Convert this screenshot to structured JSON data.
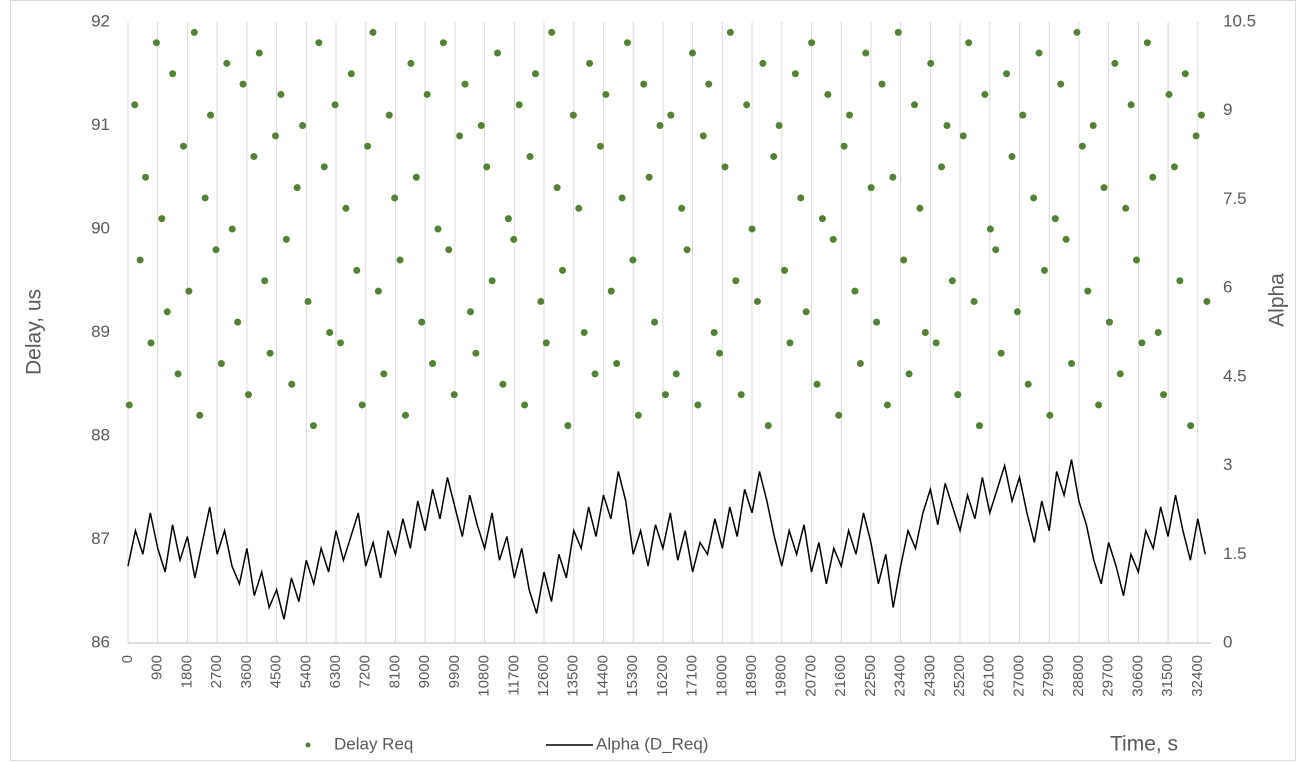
{
  "chart_data": {
    "type": "combo",
    "x_label": "Time, s",
    "y_label": "Delay, us",
    "y2_label": "Alpha",
    "xlim": [
      0,
      32800
    ],
    "xticks": [
      0,
      900,
      1800,
      2700,
      3600,
      4500,
      5400,
      6300,
      7200,
      8100,
      9000,
      9900,
      10800,
      11700,
      12600,
      13500,
      14400,
      15300,
      16200,
      17100,
      18000,
      18900,
      19800,
      20700,
      21600,
      22500,
      23400,
      24300,
      25200,
      26100,
      27000,
      27900,
      28800,
      29700,
      30600,
      31500,
      32400
    ],
    "ylim": [
      86,
      92
    ],
    "yticks": [
      86,
      87,
      88,
      89,
      90,
      91,
      92
    ],
    "y2lim": [
      0,
      10.5
    ],
    "y2ticks": [
      0,
      1.5,
      3,
      4.5,
      6,
      7.5,
      9,
      10.5
    ],
    "grid": true,
    "legend": "bottom",
    "series": [
      {
        "name": "Delay Req",
        "type": "scatter",
        "color": "#548235",
        "x": [
          40,
          204,
          368,
          532,
          696,
          860,
          1024,
          1188,
          1352,
          1516,
          1680,
          1844,
          2008,
          2172,
          2336,
          2500,
          2664,
          2828,
          2992,
          3156,
          3320,
          3484,
          3648,
          3812,
          3976,
          4140,
          4304,
          4468,
          4632,
          4796,
          4960,
          5124,
          5288,
          5452,
          5616,
          5780,
          5944,
          6108,
          6272,
          6436,
          6600,
          6764,
          6928,
          7092,
          7256,
          7420,
          7584,
          7748,
          7912,
          8076,
          8240,
          8404,
          8568,
          8732,
          8896,
          9060,
          9224,
          9388,
          9552,
          9716,
          9880,
          10044,
          10208,
          10372,
          10536,
          10700,
          10864,
          11028,
          11192,
          11356,
          11520,
          11684,
          11848,
          12012,
          12176,
          12340,
          12504,
          12668,
          12832,
          12996,
          13160,
          13324,
          13488,
          13652,
          13816,
          13980,
          14144,
          14308,
          14472,
          14636,
          14800,
          14964,
          15128,
          15292,
          15456,
          15620,
          15784,
          15948,
          16112,
          16276,
          16440,
          16604,
          16768,
          16932,
          17096,
          17260,
          17424,
          17588,
          17752,
          17916,
          18080,
          18244,
          18408,
          18572,
          18736,
          18900,
          19064,
          19228,
          19392,
          19556,
          19720,
          19884,
          20048,
          20212,
          20376,
          20540,
          20704,
          20868,
          21032,
          21196,
          21360,
          21524,
          21688,
          21852,
          22016,
          22180,
          22344,
          22508,
          22672,
          22836,
          23000,
          23164,
          23328,
          23492,
          23656,
          23820,
          23984,
          24148,
          24312,
          24476,
          24640,
          24804,
          24968,
          25132,
          25296,
          25460,
          25624,
          25788,
          25952,
          26116,
          26280,
          26444,
          26608,
          26772,
          26936,
          27100,
          27264,
          27428,
          27592,
          27756,
          27920,
          28084,
          28248,
          28412,
          28576,
          28740,
          28904,
          29068,
          29232,
          29396,
          29560,
          29724,
          29888,
          30052,
          30216,
          30380,
          30544,
          30708,
          30872,
          31036,
          31200,
          31364,
          31528,
          31692,
          31856,
          32020,
          32184,
          32348,
          32512,
          32676
        ],
        "values": [
          88.3,
          91.2,
          89.7,
          90.5,
          88.9,
          91.8,
          90.1,
          89.2,
          91.5,
          88.6,
          90.8,
          89.4,
          91.9,
          88.2,
          90.3,
          91.1,
          89.8,
          88.7,
          91.6,
          90.0,
          89.1,
          91.4,
          88.4,
          90.7,
          91.7,
          89.5,
          88.8,
          90.9,
          91.3,
          89.9,
          88.5,
          90.4,
          91.0,
          89.3,
          88.1,
          91.8,
          90.6,
          89.0,
          91.2,
          88.9,
          90.2,
          91.5,
          89.6,
          88.3,
          90.8,
          91.9,
          89.4,
          88.6,
          91.1,
          90.3,
          89.7,
          88.2,
          91.6,
          90.5,
          89.1,
          91.3,
          88.7,
          90.0,
          91.8,
          89.8,
          88.4,
          90.9,
          91.4,
          89.2,
          88.8,
          91.0,
          90.6,
          89.5,
          91.7,
          88.5,
          90.1,
          89.9,
          91.2,
          88.3,
          90.7,
          91.5,
          89.3,
          88.9,
          91.9,
          90.4,
          89.6,
          88.1,
          91.1,
          90.2,
          89.0,
          91.6,
          88.6,
          90.8,
          91.3,
          89.4,
          88.7,
          90.3,
          91.8,
          89.7,
          88.2,
          91.4,
          90.5,
          89.1,
          91.0,
          88.4,
          91.1,
          88.6,
          90.2,
          89.8,
          91.7,
          88.3,
          90.9,
          91.4,
          89.0,
          88.8,
          90.6,
          91.9,
          89.5,
          88.4,
          91.2,
          90.0,
          89.3,
          91.6,
          88.1,
          90.7,
          91.0,
          89.6,
          88.9,
          91.5,
          90.3,
          89.2,
          91.8,
          88.5,
          90.1,
          91.3,
          89.9,
          88.2,
          90.8,
          91.1,
          89.4,
          88.7,
          91.7,
          90.4,
          89.1,
          91.4,
          88.3,
          90.5,
          91.9,
          89.7,
          88.6,
          91.2,
          90.2,
          89.0,
          91.6,
          88.9,
          90.6,
          91.0,
          89.5,
          88.4,
          90.9,
          91.8,
          89.3,
          88.1,
          91.3,
          90.0,
          89.8,
          88.8,
          91.5,
          90.7,
          89.2,
          91.1,
          88.5,
          90.3,
          91.7,
          89.6,
          88.2,
          90.1,
          91.4,
          89.9,
          88.7,
          91.9,
          90.8,
          89.4,
          91.0,
          88.3,
          90.4,
          89.1,
          91.6,
          88.6,
          90.2,
          91.2,
          89.7,
          88.9,
          91.8,
          90.5,
          89.0,
          88.4,
          91.3,
          90.6,
          89.5,
          91.5,
          88.1,
          90.9,
          91.1,
          89.3
        ]
      },
      {
        "name": "Alpha (D_Req)",
        "type": "line",
        "color": "#000000",
        "axis": "y2",
        "x": [
          0,
          225,
          450,
          675,
          900,
          1125,
          1350,
          1575,
          1800,
          2025,
          2250,
          2475,
          2700,
          2925,
          3150,
          3375,
          3600,
          3825,
          4050,
          4275,
          4500,
          4725,
          4950,
          5175,
          5400,
          5625,
          5850,
          6075,
          6300,
          6525,
          6750,
          6975,
          7200,
          7425,
          7650,
          7875,
          8100,
          8325,
          8550,
          8775,
          9000,
          9225,
          9450,
          9675,
          9900,
          10125,
          10350,
          10575,
          10800,
          11025,
          11250,
          11475,
          11700,
          11925,
          12150,
          12375,
          12600,
          12825,
          13050,
          13275,
          13500,
          13725,
          13950,
          14175,
          14400,
          14625,
          14850,
          15075,
          15300,
          15525,
          15750,
          15975,
          16200,
          16425,
          16650,
          16875,
          17100,
          17325,
          17550,
          17775,
          18000,
          18225,
          18450,
          18675,
          18900,
          19125,
          19350,
          19575,
          19800,
          20025,
          20250,
          20475,
          20700,
          20925,
          21150,
          21375,
          21600,
          21825,
          22050,
          22275,
          22500,
          22725,
          22950,
          23175,
          23400,
          23625,
          23850,
          24075,
          24300,
          24525,
          24750,
          24975,
          25200,
          25425,
          25650,
          25875,
          26100,
          26325,
          26550,
          26775,
          27000,
          27225,
          27450,
          27675,
          27900,
          28125,
          28350,
          28575,
          28800,
          29025,
          29250,
          29475,
          29700,
          29925,
          30150,
          30375,
          30600,
          30825,
          31050,
          31275,
          31500,
          31725,
          31950,
          32175,
          32400,
          32625
        ],
        "values": [
          1.3,
          1.9,
          1.5,
          2.2,
          1.6,
          1.2,
          2.0,
          1.4,
          1.8,
          1.1,
          1.7,
          2.3,
          1.5,
          1.9,
          1.3,
          1.0,
          1.6,
          0.8,
          1.2,
          0.6,
          0.9,
          0.4,
          1.1,
          0.7,
          1.4,
          1.0,
          1.6,
          1.2,
          1.9,
          1.4,
          1.8,
          2.2,
          1.3,
          1.7,
          1.1,
          1.9,
          1.5,
          2.1,
          1.6,
          2.4,
          1.9,
          2.6,
          2.1,
          2.8,
          2.3,
          1.8,
          2.5,
          2.0,
          1.6,
          2.2,
          1.4,
          1.8,
          1.1,
          1.6,
          0.9,
          0.5,
          1.2,
          0.7,
          1.5,
          1.1,
          1.9,
          1.6,
          2.3,
          1.8,
          2.5,
          2.1,
          2.9,
          2.4,
          1.5,
          1.9,
          1.3,
          2.0,
          1.6,
          2.2,
          1.4,
          1.9,
          1.2,
          1.7,
          1.5,
          2.1,
          1.6,
          2.3,
          1.8,
          2.6,
          2.2,
          2.9,
          2.4,
          1.8,
          1.3,
          1.9,
          1.5,
          2.0,
          1.2,
          1.7,
          1.0,
          1.6,
          1.3,
          1.9,
          1.5,
          2.2,
          1.7,
          1.0,
          1.5,
          0.6,
          1.3,
          1.9,
          1.6,
          2.2,
          2.6,
          2.0,
          2.7,
          2.3,
          1.9,
          2.5,
          2.1,
          2.8,
          2.2,
          2.6,
          3.0,
          2.4,
          2.8,
          2.2,
          1.7,
          2.4,
          1.9,
          2.9,
          2.5,
          3.1,
          2.4,
          2.0,
          1.4,
          1.0,
          1.7,
          1.3,
          0.8,
          1.5,
          1.2,
          1.9,
          1.6,
          2.3,
          1.8,
          2.5,
          1.9,
          1.4,
          2.1,
          1.5
        ]
      }
    ]
  }
}
